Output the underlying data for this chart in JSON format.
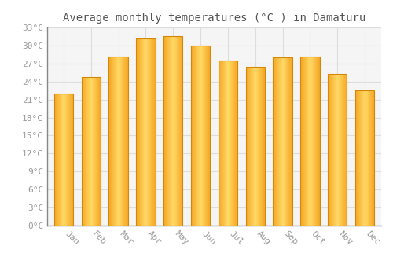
{
  "title": "Average monthly temperatures (°C ) in Damaturu",
  "months": [
    "Jan",
    "Feb",
    "Mar",
    "Apr",
    "May",
    "Jun",
    "Jul",
    "Aug",
    "Sep",
    "Oct",
    "Nov",
    "Dec"
  ],
  "temperatures": [
    22.0,
    24.8,
    28.2,
    31.2,
    31.5,
    30.0,
    27.5,
    26.5,
    28.0,
    28.2,
    25.3,
    22.5
  ],
  "bar_color_left": "#F5A623",
  "bar_color_center": "#FFD966",
  "bar_color_right": "#F5A623",
  "bar_edge_color": "#D4880A",
  "background_color": "#FFFFFF",
  "plot_bg_color": "#F5F5F5",
  "grid_color": "#DDDDDD",
  "tick_label_color": "#999999",
  "title_color": "#555555",
  "ylim": [
    0,
    33
  ],
  "yticks": [
    0,
    3,
    6,
    9,
    12,
    15,
    18,
    21,
    24,
    27,
    30,
    33
  ],
  "title_fontsize": 10,
  "tick_fontsize": 8,
  "font_family": "monospace"
}
